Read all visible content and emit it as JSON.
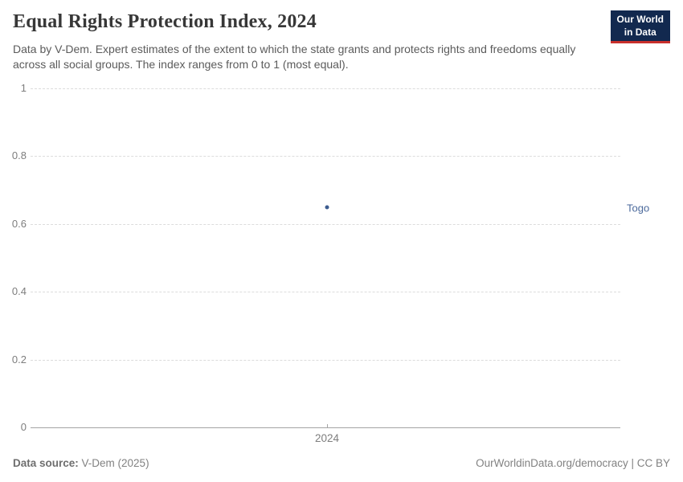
{
  "header": {
    "title": "Equal Rights Protection Index, 2024",
    "subtitle": "Data by V-Dem. Expert estimates of the extent to which the state grants and protects rights and freedoms equally across all social groups. The index ranges from 0 to 1 (most equal).",
    "logo": {
      "line1": "Our World",
      "line2": "in Data"
    }
  },
  "chart_data": {
    "type": "scatter",
    "title": "Equal Rights Protection Index, 2024",
    "x": [
      2024
    ],
    "series": [
      {
        "name": "Togo",
        "values": [
          0.65
        ],
        "color": "#3d5c8f",
        "label_color": "#4c6a9c"
      }
    ],
    "xlabel": "",
    "ylabel": "",
    "ylim": [
      0,
      1
    ],
    "yticks": [
      0,
      0.2,
      0.4,
      0.6,
      0.8,
      1
    ],
    "xticks": [
      2024
    ],
    "grid": true,
    "legend_position": "right-of-plot"
  },
  "footer": {
    "source_label": "Data source:",
    "source_value": " V-Dem (2025)",
    "credit": "OurWorldinData.org/democracy | CC BY"
  },
  "colors": {
    "brand_navy": "#12294f",
    "brand_red": "#c9302c",
    "series_blue": "#3d5c8f",
    "entity_label_blue": "#4c6a9c",
    "gridline": "#dcdcdc",
    "axis": "#a5a5a5",
    "tick_text": "#7d7d7d"
  }
}
